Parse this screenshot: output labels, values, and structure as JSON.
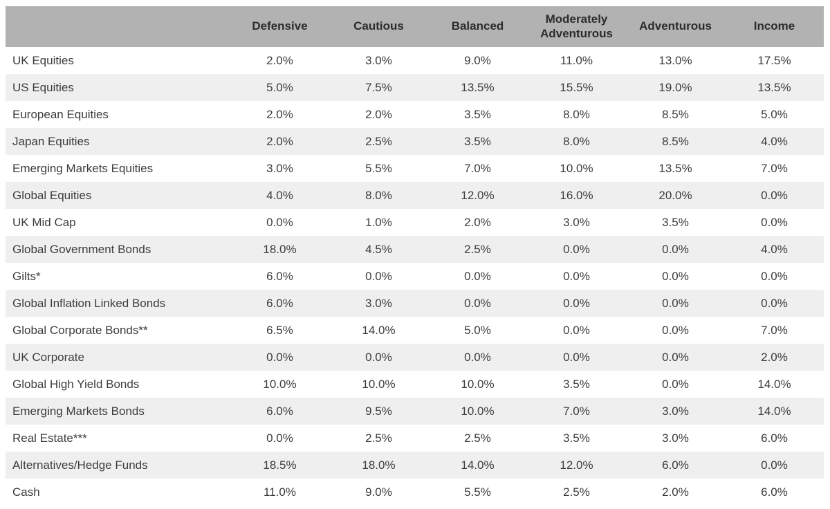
{
  "chart_data": {
    "type": "table",
    "title": "",
    "columns": [
      "Defensive",
      "Cautious",
      "Balanced",
      "Moderately Adventurous",
      "Adventurous",
      "Income"
    ],
    "unit": "%",
    "rows": [
      {
        "label": "UK Equities",
        "values": [
          "2.0%",
          "3.0%",
          "9.0%",
          "11.0%",
          "13.0%",
          "17.5%"
        ]
      },
      {
        "label": "US Equities",
        "values": [
          "5.0%",
          "7.5%",
          "13.5%",
          "15.5%",
          "19.0%",
          "13.5%"
        ]
      },
      {
        "label": "European Equities",
        "values": [
          "2.0%",
          "2.0%",
          "3.5%",
          "8.0%",
          "8.5%",
          "5.0%"
        ]
      },
      {
        "label": "Japan Equities",
        "values": [
          "2.0%",
          "2.5%",
          "3.5%",
          "8.0%",
          "8.5%",
          "4.0%"
        ]
      },
      {
        "label": "Emerging Markets Equities",
        "values": [
          "3.0%",
          "5.5%",
          "7.0%",
          "10.0%",
          "13.5%",
          "7.0%"
        ]
      },
      {
        "label": "Global Equities",
        "values": [
          "4.0%",
          "8.0%",
          "12.0%",
          "16.0%",
          "20.0%",
          "0.0%"
        ]
      },
      {
        "label": "UK Mid Cap",
        "values": [
          "0.0%",
          "1.0%",
          "2.0%",
          "3.0%",
          "3.5%",
          "0.0%"
        ]
      },
      {
        "label": "Global Government Bonds",
        "values": [
          "18.0%",
          "4.5%",
          "2.5%",
          "0.0%",
          "0.0%",
          "4.0%"
        ]
      },
      {
        "label": "Gilts*",
        "values": [
          "6.0%",
          "0.0%",
          "0.0%",
          "0.0%",
          "0.0%",
          "0.0%"
        ]
      },
      {
        "label": "Global Inflation Linked Bonds",
        "values": [
          "6.0%",
          "3.0%",
          "0.0%",
          "0.0%",
          "0.0%",
          "0.0%"
        ]
      },
      {
        "label": "Global Corporate Bonds**",
        "values": [
          "6.5%",
          "14.0%",
          "5.0%",
          "0.0%",
          "0.0%",
          "7.0%"
        ]
      },
      {
        "label": "UK Corporate",
        "values": [
          "0.0%",
          "0.0%",
          "0.0%",
          "0.0%",
          "0.0%",
          "2.0%"
        ]
      },
      {
        "label": "Global High Yield Bonds",
        "values": [
          "10.0%",
          "10.0%",
          "10.0%",
          "3.5%",
          "0.0%",
          "14.0%"
        ]
      },
      {
        "label": "Emerging Markets Bonds",
        "values": [
          "6.0%",
          "9.5%",
          "10.0%",
          "7.0%",
          "3.0%",
          "14.0%"
        ]
      },
      {
        "label": "Real Estate***",
        "values": [
          "0.0%",
          "2.5%",
          "2.5%",
          "3.5%",
          "3.0%",
          "6.0%"
        ]
      },
      {
        "label": "Alternatives/Hedge Funds",
        "values": [
          "18.5%",
          "18.0%",
          "14.0%",
          "12.0%",
          "6.0%",
          "0.0%"
        ]
      },
      {
        "label": "Cash",
        "values": [
          "11.0%",
          "9.0%",
          "5.5%",
          "2.5%",
          "2.0%",
          "6.0%"
        ]
      }
    ],
    "layout_hints": {
      "row_striping": "white and light gray alternating, first data row white",
      "first_column_align": "left",
      "value_columns_align": "center"
    },
    "colors": {
      "header_bg": "#b2b2b2",
      "header_text": "#2d2c2b",
      "row_alt_bg": "#efefef",
      "row_bg": "#ffffff",
      "body_text": "#3c3c3b"
    }
  }
}
